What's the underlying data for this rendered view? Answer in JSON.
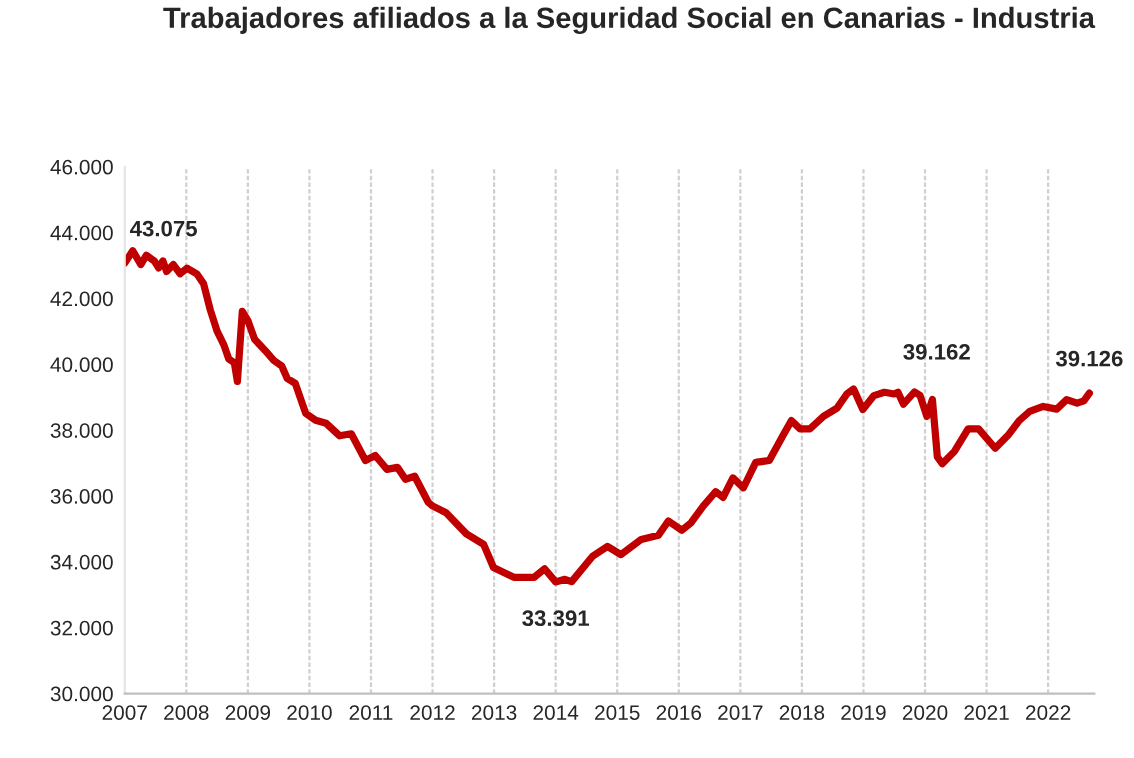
{
  "chart_data": {
    "type": "line",
    "title": "Trabajadores afiliados a la Seguridad Social en Canarias - Industria",
    "x": [
      2007.0,
      2007.13,
      2007.26,
      2007.35,
      2007.48,
      2007.55,
      2007.62,
      2007.68,
      2007.79,
      2007.9,
      2008.01,
      2008.17,
      2008.28,
      2008.39,
      2008.5,
      2008.61,
      2008.69,
      2008.78,
      2008.83,
      2008.91,
      2009.0,
      2009.11,
      2009.28,
      2009.42,
      2009.55,
      2009.64,
      2009.77,
      2009.94,
      2010.1,
      2010.27,
      2010.49,
      2010.68,
      2010.91,
      2011.07,
      2011.26,
      2011.43,
      2011.56,
      2011.71,
      2011.93,
      2012.0,
      2012.22,
      2012.55,
      2012.83,
      2012.99,
      2013.32,
      2013.65,
      2013.82,
      2014.0,
      2014.15,
      2014.26,
      2014.6,
      2014.84,
      2015.06,
      2015.39,
      2015.67,
      2015.83,
      2016.05,
      2016.2,
      2016.4,
      2016.6,
      2016.72,
      2016.88,
      2017.05,
      2017.25,
      2017.47,
      2017.69,
      2017.83,
      2017.97,
      2018.13,
      2018.35,
      2018.57,
      2018.73,
      2018.84,
      2018.99,
      2019.17,
      2019.34,
      2019.5,
      2019.56,
      2019.65,
      2019.83,
      2019.92,
      2020.03,
      2020.12,
      2020.2,
      2020.28,
      2020.48,
      2020.7,
      2020.87,
      2021.14,
      2021.36,
      2021.53,
      2021.7,
      2021.92,
      2022.14,
      2022.3,
      2022.47,
      2022.58,
      2022.67
    ],
    "series": [
      {
        "color": "#c00000",
        "values": [
          43075,
          43450,
          43030,
          43310,
          43140,
          42930,
          43140,
          42820,
          43030,
          42750,
          42920,
          42750,
          42450,
          41650,
          41010,
          40590,
          40160,
          40050,
          39480,
          41610,
          41330,
          40760,
          40420,
          40120,
          39950,
          39570,
          39420,
          38510,
          38300,
          38210,
          37830,
          37890,
          37080,
          37230,
          36810,
          36870,
          36510,
          36600,
          35810,
          35700,
          35490,
          34850,
          34530,
          33830,
          33530,
          33530,
          33790,
          33391,
          33470,
          33400,
          34170,
          34470,
          34220,
          34680,
          34810,
          35240,
          34960,
          35190,
          35700,
          36130,
          35960,
          36550,
          36250,
          37020,
          37080,
          37830,
          38290,
          38040,
          38040,
          38420,
          38670,
          39100,
          39250,
          38630,
          39050,
          39150,
          39100,
          39150,
          38790,
          39162,
          39050,
          38420,
          38930,
          37190,
          36980,
          37360,
          38040,
          38040,
          37450,
          37870,
          38290,
          38570,
          38720,
          38640,
          38930,
          38820,
          38890,
          39126
        ]
      }
    ],
    "xlim": [
      2007,
      2022.75
    ],
    "xticks": [
      2007,
      2008,
      2009,
      2010,
      2011,
      2012,
      2013,
      2014,
      2015,
      2016,
      2017,
      2018,
      2019,
      2020,
      2021,
      2022
    ],
    "ylim": [
      30000,
      46000
    ],
    "yticks": [
      {
        "value": 30000,
        "label": "30.000"
      },
      {
        "value": 32000,
        "label": "32.000"
      },
      {
        "value": 34000,
        "label": "34.000"
      },
      {
        "value": 36000,
        "label": "36.000"
      },
      {
        "value": 38000,
        "label": "38.000"
      },
      {
        "value": 40000,
        "label": "40.000"
      },
      {
        "value": 42000,
        "label": "42.000"
      },
      {
        "value": 44000,
        "label": "44.000"
      },
      {
        "value": 46000,
        "label": "46.000"
      }
    ],
    "grid": "x",
    "marker": "none",
    "line_style": "solid",
    "annotations": [
      {
        "text": "43.075",
        "x": 2007.0,
        "y": 43075
      },
      {
        "text": "33.391",
        "x": 2014.0,
        "y": 33391
      },
      {
        "text": "39.162",
        "x": 2019.83,
        "y": 39162
      },
      {
        "text": "39.126",
        "x": 2022.67,
        "y": 39126
      }
    ]
  }
}
